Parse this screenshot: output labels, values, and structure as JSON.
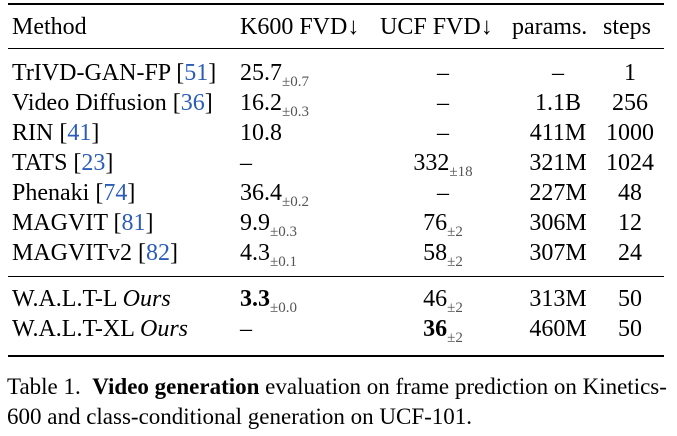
{
  "table": {
    "headers": {
      "method": "Method",
      "k600": "K600 FVD↓",
      "ucf": "UCF FVD↓",
      "params": "params.",
      "steps": "steps"
    },
    "rows": [
      {
        "name": "TrIVD-GAN-FP [",
        "ref": "51",
        "close": "]",
        "k600": "25.7",
        "k600_std": "±0.7",
        "ucf": "–",
        "ucf_std": "",
        "params": "–",
        "steps": "1"
      },
      {
        "name": "Video Diffusion [",
        "ref": "36",
        "close": "]",
        "k600": "16.2",
        "k600_std": "±0.3",
        "ucf": "–",
        "ucf_std": "",
        "params": "1.1B",
        "steps": "256"
      },
      {
        "name": "RIN [",
        "ref": "41",
        "close": "]",
        "k600": "10.8",
        "k600_std": "",
        "ucf": "–",
        "ucf_std": "",
        "params": "411M",
        "steps": "1000"
      },
      {
        "name": "TATS [",
        "ref": "23",
        "close": "]",
        "k600": "–",
        "k600_std": "",
        "ucf": "332",
        "ucf_std": "±18",
        "params": "321M",
        "steps": "1024"
      },
      {
        "name": "Phenaki [",
        "ref": "74",
        "close": "]",
        "k600": "36.4",
        "k600_std": "±0.2",
        "ucf": "–",
        "ucf_std": "",
        "params": "227M",
        "steps": "48"
      },
      {
        "name": "MAGVIT [",
        "ref": "81",
        "close": "]",
        "k600": "9.9",
        "k600_std": "±0.3",
        "ucf": "76",
        "ucf_std": "±2",
        "params": "306M",
        "steps": "12"
      },
      {
        "name": "MAGVITv2 [",
        "ref": "82",
        "close": "]",
        "k600": "4.3",
        "k600_std": "±0.1",
        "ucf": "58",
        "ucf_std": "±2",
        "params": "307M",
        "steps": "24"
      }
    ],
    "ours": [
      {
        "name": "W.A.L.T-L ",
        "tag": "Ours",
        "k600": "3.3",
        "k600_std": "±0.0",
        "ucf": "46",
        "ucf_std": "±2",
        "params": "313M",
        "steps": "50"
      },
      {
        "name": "W.A.L.T-XL ",
        "tag": "Ours",
        "k600": "–",
        "k600_std": "",
        "ucf": "36",
        "ucf_std": "±2",
        "params": "460M",
        "steps": "50"
      }
    ]
  },
  "caption": {
    "label": "Table 1.",
    "bold": "Video generation",
    "text": " evaluation on frame prediction on Kinetics-600 and class-conditional generation on UCF-101."
  }
}
